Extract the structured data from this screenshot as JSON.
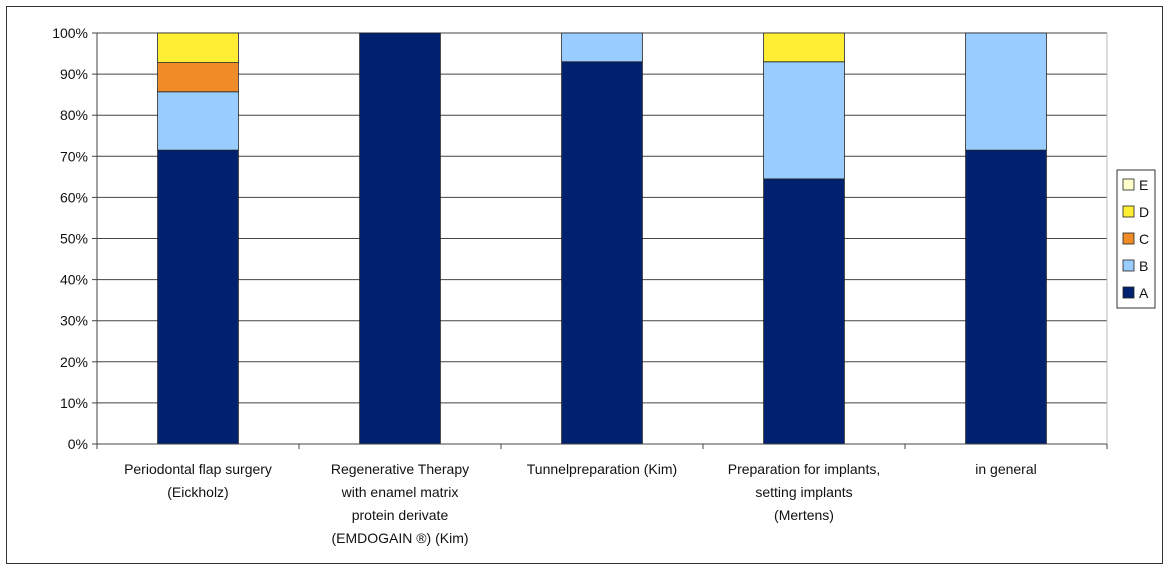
{
  "chart_data": {
    "type": "bar",
    "stacked": true,
    "percent": true,
    "categories": [
      [
        "Periodontal flap surgery",
        "(Eickholz)"
      ],
      [
        "Regenerative Therapy",
        "with enamel matrix",
        "protein derivate",
        "(EMDOGAIN ®)  (Kim)"
      ],
      [
        "Tunnelpreparation (Kim)"
      ],
      [
        "Preparation for implants,",
        "setting implants",
        "(Mertens)"
      ],
      [
        "in general"
      ]
    ],
    "series": [
      {
        "name": "A",
        "color": "#002070",
        "values": [
          71.5,
          100,
          93,
          64.5,
          71.5
        ]
      },
      {
        "name": "B",
        "color": "#99ccff",
        "values": [
          14.2,
          0,
          7,
          28.5,
          28.5
        ]
      },
      {
        "name": "C",
        "color": "#f08c28",
        "values": [
          7.1,
          0,
          0,
          0,
          0
        ]
      },
      {
        "name": "D",
        "color": "#ffee33",
        "values": [
          7.2,
          0,
          0,
          7,
          0
        ]
      },
      {
        "name": "E",
        "color": "#ffffcc",
        "values": [
          0,
          0,
          0,
          0,
          0
        ]
      }
    ],
    "ylim": [
      0,
      100
    ],
    "yticks": [
      "0%",
      "10%",
      "20%",
      "30%",
      "40%",
      "50%",
      "60%",
      "70%",
      "80%",
      "90%",
      "100%"
    ],
    "grid": true,
    "legend_position": "right",
    "legend_order": [
      "E",
      "D",
      "C",
      "B",
      "A"
    ]
  }
}
